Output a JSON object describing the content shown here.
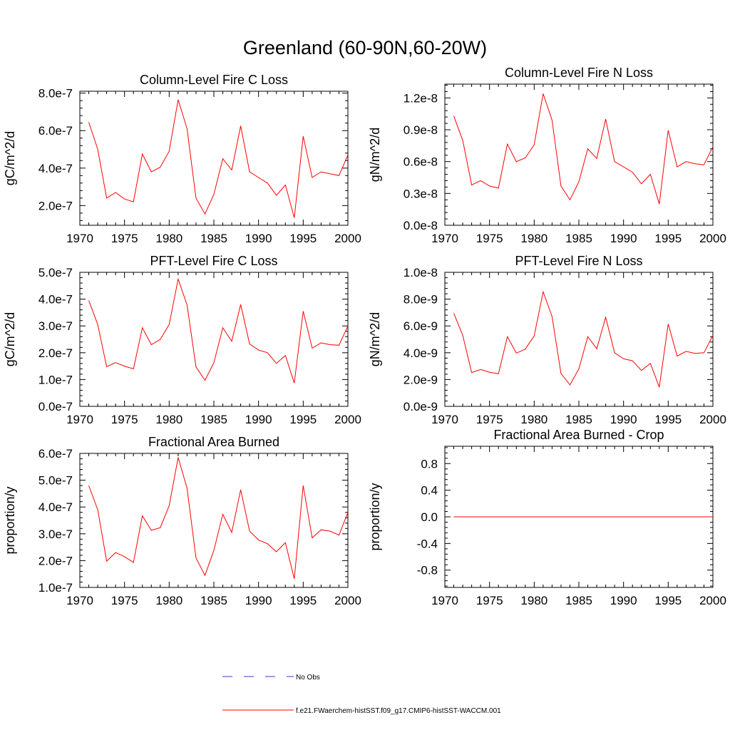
{
  "page": {
    "title": "Greenland (60-90N,60-20W)"
  },
  "legend": {
    "placement": "bottom-center",
    "entries": [
      {
        "label": "No Obs",
        "color": "#3b3bcc",
        "style": "dashed"
      },
      {
        "label": "f.e21.FWaerchem-histSST.f09_g17.CMIP6-histSST-WACCM.001",
        "color": "#ff0000",
        "style": "solid"
      }
    ]
  },
  "chart_data": [
    {
      "type": "line",
      "title": "Column-Level Fire C Loss",
      "ylabel": "gC/m^2/d",
      "xlim": [
        1970,
        2000
      ],
      "ylim": [
        9.5e-08,
        8.1e-07
      ],
      "xticks": [
        1970,
        1975,
        1980,
        1985,
        1990,
        1995,
        2000
      ],
      "xtick_labels": [
        "1970",
        "1975",
        "1980",
        "1985",
        "1990",
        "1995",
        "2000"
      ],
      "yticks": [
        2e-07,
        4e-07,
        6e-07,
        8e-07
      ],
      "ytick_labels": [
        "2.0e-7",
        "4.0e-7",
        "6.0e-7",
        "8.0e-7"
      ],
      "grid": false,
      "x": [
        1971,
        1972,
        1973,
        1974,
        1975,
        1976,
        1977,
        1978,
        1979,
        1980,
        1981,
        1982,
        1983,
        1984,
        1985,
        1986,
        1987,
        1988,
        1989,
        1990,
        1991,
        1992,
        1993,
        1994,
        1995,
        1996,
        1997,
        1998,
        1999,
        2000
      ],
      "series": [
        {
          "color": "#ff0000",
          "values": [
            6.45e-07,
            5e-07,
            2.4e-07,
            2.7e-07,
            2.35e-07,
            2.2e-07,
            4.75e-07,
            3.8e-07,
            4.05e-07,
            4.9e-07,
            7.65e-07,
            6.1e-07,
            2.4e-07,
            1.55e-07,
            2.6e-07,
            4.5e-07,
            3.9e-07,
            6.25e-07,
            3.8e-07,
            3.5e-07,
            3.2e-07,
            2.55e-07,
            3.1e-07,
            1.35e-07,
            5.7e-07,
            3.5e-07,
            3.8e-07,
            3.7e-07,
            3.6e-07,
            4.7e-07
          ]
        }
      ]
    },
    {
      "type": "line",
      "title": "Column-Level Fire N Loss",
      "ylabel": "gN/m^2/d",
      "xlim": [
        1970,
        2000
      ],
      "ylim": [
        0,
        1.33e-08
      ],
      "xticks": [
        1970,
        1975,
        1980,
        1985,
        1990,
        1995,
        2000
      ],
      "xtick_labels": [
        "1970",
        "1975",
        "1980",
        "1985",
        "1990",
        "1995",
        "2000"
      ],
      "yticks": [
        0,
        3e-09,
        6e-09,
        9e-09,
        1.2e-08
      ],
      "ytick_labels": [
        "0.0e-8",
        "0.3e-8",
        "0.6e-8",
        "0.9e-8",
        "1.2e-8"
      ],
      "grid": false,
      "x": [
        1971,
        1972,
        1973,
        1974,
        1975,
        1976,
        1977,
        1978,
        1979,
        1980,
        1981,
        1982,
        1983,
        1984,
        1985,
        1986,
        1987,
        1988,
        1989,
        1990,
        1991,
        1992,
        1993,
        1994,
        1995,
        1996,
        1997,
        1998,
        1999,
        2000
      ],
      "series": [
        {
          "color": "#ff0000",
          "values": [
            1.03e-08,
            8e-09,
            3.8e-09,
            4.2e-09,
            3.7e-09,
            3.5e-09,
            7.65e-09,
            6e-09,
            6.35e-09,
            7.6e-09,
            1.24e-08,
            9.9e-09,
            3.7e-09,
            2.4e-09,
            4.1e-09,
            7.2e-09,
            6.3e-09,
            1e-08,
            6e-09,
            5.5e-09,
            5e-09,
            3.9e-09,
            4.8e-09,
            2e-09,
            8.95e-09,
            5.5e-09,
            6e-09,
            5.8e-09,
            5.7e-09,
            7.4e-09
          ]
        }
      ]
    },
    {
      "type": "line",
      "title": "PFT-Level Fire C Loss",
      "ylabel": "gC/m^2/d",
      "xlim": [
        1970,
        2000
      ],
      "ylim": [
        0,
        5e-07
      ],
      "xticks": [
        1970,
        1975,
        1980,
        1985,
        1990,
        1995,
        2000
      ],
      "xtick_labels": [
        "1970",
        "1975",
        "1980",
        "1985",
        "1990",
        "1995",
        "2000"
      ],
      "yticks": [
        0,
        1e-07,
        2e-07,
        3e-07,
        4e-07,
        5e-07
      ],
      "ytick_labels": [
        "0.0e-7",
        "1.0e-7",
        "2.0e-7",
        "3.0e-7",
        "4.0e-7",
        "5.0e-7"
      ],
      "grid": false,
      "x": [
        1971,
        1972,
        1973,
        1974,
        1975,
        1976,
        1977,
        1978,
        1979,
        1980,
        1981,
        1982,
        1983,
        1984,
        1985,
        1986,
        1987,
        1988,
        1989,
        1990,
        1991,
        1992,
        1993,
        1994,
        1995,
        1996,
        1997,
        1998,
        1999,
        2000
      ],
      "series": [
        {
          "color": "#ff0000",
          "values": [
            3.95e-07,
            3.05e-07,
            1.48e-07,
            1.63e-07,
            1.5e-07,
            1.4e-07,
            2.93e-07,
            2.3e-07,
            2.5e-07,
            3.05e-07,
            4.75e-07,
            3.78e-07,
            1.48e-07,
            9.7e-08,
            1.63e-07,
            2.93e-07,
            2.43e-07,
            3.8e-07,
            2.33e-07,
            2.1e-07,
            2e-07,
            1.6e-07,
            1.9e-07,
            8.7e-08,
            3.55e-07,
            2.17e-07,
            2.37e-07,
            2.3e-07,
            2.28e-07,
            3e-07
          ]
        }
      ]
    },
    {
      "type": "line",
      "title": "PFT-Level Fire N Loss",
      "ylabel": "gN/m^2/d",
      "xlim": [
        1970,
        2000
      ],
      "ylim": [
        0,
        1e-08
      ],
      "xticks": [
        1970,
        1975,
        1980,
        1985,
        1990,
        1995,
        2000
      ],
      "xtick_labels": [
        "1970",
        "1975",
        "1980",
        "1985",
        "1990",
        "1995",
        "2000"
      ],
      "yticks": [
        0,
        2e-09,
        4e-09,
        6e-09,
        8e-09,
        1e-08
      ],
      "ytick_labels": [
        "0.0e-9",
        "2.0e-9",
        "4.0e-9",
        "6.0e-9",
        "8.0e-9",
        "1.0e-8"
      ],
      "grid": false,
      "x": [
        1971,
        1972,
        1973,
        1974,
        1975,
        1976,
        1977,
        1978,
        1979,
        1980,
        1981,
        1982,
        1983,
        1984,
        1985,
        1986,
        1987,
        1988,
        1989,
        1990,
        1991,
        1992,
        1993,
        1994,
        1995,
        1996,
        1997,
        1998,
        1999,
        2000
      ],
      "series": [
        {
          "color": "#ff0000",
          "values": [
            6.95e-09,
            5.3e-09,
            2.52e-09,
            2.75e-09,
            2.55e-09,
            2.43e-09,
            5.2e-09,
            3.97e-09,
            4.27e-09,
            5.25e-09,
            8.55e-09,
            6.7e-09,
            2.45e-09,
            1.6e-09,
            2.8e-09,
            5.2e-09,
            4.3e-09,
            6.65e-09,
            4e-09,
            3.55e-09,
            3.4e-09,
            2.68e-09,
            3.2e-09,
            1.43e-09,
            6.15e-09,
            3.75e-09,
            4.1e-09,
            3.95e-09,
            4e-09,
            5.3e-09
          ]
        }
      ]
    },
    {
      "type": "line",
      "title": "Fractional Area Burned",
      "ylabel": "proportion/y",
      "xlim": [
        1970,
        2000
      ],
      "ylim": [
        1e-07,
        6e-07
      ],
      "xticks": [
        1970,
        1975,
        1980,
        1985,
        1990,
        1995,
        2000
      ],
      "xtick_labels": [
        "1970",
        "1975",
        "1980",
        "1985",
        "1990",
        "1995",
        "2000"
      ],
      "yticks": [
        1e-07,
        2e-07,
        3e-07,
        4e-07,
        5e-07,
        6e-07
      ],
      "ytick_labels": [
        "1.0e-7",
        "2.0e-7",
        "3.0e-7",
        "4.0e-7",
        "5.0e-7",
        "6.0e-7"
      ],
      "grid": false,
      "x": [
        1971,
        1972,
        1973,
        1974,
        1975,
        1976,
        1977,
        1978,
        1979,
        1980,
        1981,
        1982,
        1983,
        1984,
        1985,
        1986,
        1987,
        1988,
        1989,
        1990,
        1991,
        1992,
        1993,
        1994,
        1995,
        1996,
        1997,
        1998,
        1999,
        2000
      ],
      "series": [
        {
          "color": "#ff0000",
          "values": [
            4.8e-07,
            3.9e-07,
            1.98e-07,
            2.3e-07,
            2.15e-07,
            1.93e-07,
            3.67e-07,
            3.13e-07,
            3.23e-07,
            4.05e-07,
            5.85e-07,
            4.7e-07,
            2.1e-07,
            1.45e-07,
            2.38e-07,
            3.73e-07,
            3.05e-07,
            4.65e-07,
            3.1e-07,
            2.77e-07,
            2.63e-07,
            2.33e-07,
            2.67e-07,
            1.32e-07,
            4.8e-07,
            2.85e-07,
            3.15e-07,
            3.1e-07,
            2.95e-07,
            3.8e-07
          ]
        }
      ]
    },
    {
      "type": "line",
      "title": "Fractional Area Burned - Crop",
      "ylabel": "proportion/y",
      "xlim": [
        1970,
        2000
      ],
      "ylim": [
        -1.06,
        1.06
      ],
      "xticks": [
        1970,
        1975,
        1980,
        1985,
        1990,
        1995,
        2000
      ],
      "xtick_labels": [
        "1970",
        "1975",
        "1980",
        "1985",
        "1990",
        "1995",
        "2000"
      ],
      "yticks": [
        -0.8,
        -0.4,
        0.0,
        0.4,
        0.8
      ],
      "ytick_labels": [
        "-0.8",
        "-0.4",
        "0.0",
        "0.4",
        "0.8"
      ],
      "grid": false,
      "x": [
        1971,
        1972,
        1973,
        1974,
        1975,
        1976,
        1977,
        1978,
        1979,
        1980,
        1981,
        1982,
        1983,
        1984,
        1985,
        1986,
        1987,
        1988,
        1989,
        1990,
        1991,
        1992,
        1993,
        1994,
        1995,
        1996,
        1997,
        1998,
        1999,
        2000
      ],
      "series": [
        {
          "color": "#ff0000",
          "values": [
            0,
            0,
            0,
            0,
            0,
            0,
            0,
            0,
            0,
            0,
            0,
            0,
            0,
            0,
            0,
            0,
            0,
            0,
            0,
            0,
            0,
            0,
            0,
            0,
            0,
            0,
            0,
            0,
            0,
            0
          ]
        }
      ]
    }
  ]
}
